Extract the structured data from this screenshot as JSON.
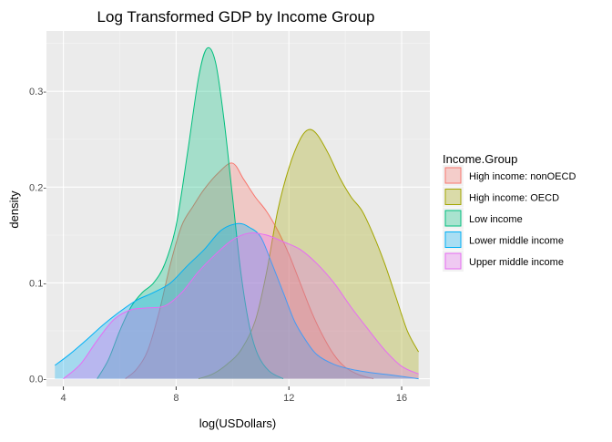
{
  "chart_data": {
    "type": "area",
    "title": "Log Transformed GDP by Income Group",
    "xlabel": "log(USDollars)",
    "ylabel": "density",
    "xlim": [
      3.4,
      17.0
    ],
    "ylim": [
      -0.008,
      0.363
    ],
    "x_ticks": [
      4,
      8,
      12,
      16
    ],
    "x_tick_labels": [
      "4",
      "8",
      "12",
      "16"
    ],
    "y_ticks": [
      0.0,
      0.1,
      0.2,
      0.3
    ],
    "y_tick_labels": [
      "0.0-",
      "0.1-",
      "0.2-",
      "0.3-"
    ],
    "grid": true,
    "legend": {
      "title": "Income.Group",
      "position": "right"
    },
    "series": [
      {
        "name": "High income: nonOECD",
        "color": "#F8766D",
        "points": [
          [
            6.2,
            0.0
          ],
          [
            6.6,
            0.01
          ],
          [
            7.0,
            0.03
          ],
          [
            7.4,
            0.07
          ],
          [
            7.8,
            0.12
          ],
          [
            8.2,
            0.16
          ],
          [
            8.6,
            0.18
          ],
          [
            9.0,
            0.198
          ],
          [
            9.5,
            0.215
          ],
          [
            10.0,
            0.225
          ],
          [
            10.4,
            0.208
          ],
          [
            10.8,
            0.19
          ],
          [
            11.2,
            0.175
          ],
          [
            11.6,
            0.155
          ],
          [
            12.0,
            0.13
          ],
          [
            12.4,
            0.1
          ],
          [
            12.8,
            0.07
          ],
          [
            13.2,
            0.045
          ],
          [
            13.6,
            0.025
          ],
          [
            14.0,
            0.012
          ],
          [
            14.5,
            0.004
          ],
          [
            15.0,
            0.0
          ]
        ]
      },
      {
        "name": "High income: OECD",
        "color": "#A3A500",
        "points": [
          [
            8.8,
            0.0
          ],
          [
            9.3,
            0.005
          ],
          [
            9.8,
            0.015
          ],
          [
            10.3,
            0.03
          ],
          [
            10.8,
            0.06
          ],
          [
            11.2,
            0.11
          ],
          [
            11.6,
            0.175
          ],
          [
            12.0,
            0.22
          ],
          [
            12.4,
            0.25
          ],
          [
            12.7,
            0.26
          ],
          [
            13.0,
            0.255
          ],
          [
            13.4,
            0.235
          ],
          [
            13.8,
            0.21
          ],
          [
            14.2,
            0.19
          ],
          [
            14.6,
            0.175
          ],
          [
            15.0,
            0.15
          ],
          [
            15.4,
            0.12
          ],
          [
            15.8,
            0.085
          ],
          [
            16.2,
            0.05
          ],
          [
            16.6,
            0.028
          ]
        ]
      },
      {
        "name": "Low income",
        "color": "#00BF7D",
        "points": [
          [
            5.2,
            0.0
          ],
          [
            5.6,
            0.02
          ],
          [
            6.0,
            0.05
          ],
          [
            6.4,
            0.075
          ],
          [
            6.8,
            0.09
          ],
          [
            7.2,
            0.1
          ],
          [
            7.6,
            0.12
          ],
          [
            8.0,
            0.16
          ],
          [
            8.4,
            0.235
          ],
          [
            8.8,
            0.315
          ],
          [
            9.1,
            0.345
          ],
          [
            9.4,
            0.33
          ],
          [
            9.7,
            0.27
          ],
          [
            10.0,
            0.19
          ],
          [
            10.3,
            0.11
          ],
          [
            10.6,
            0.055
          ],
          [
            10.9,
            0.025
          ],
          [
            11.3,
            0.008
          ],
          [
            11.8,
            0.0
          ]
        ]
      },
      {
        "name": "Lower middle income",
        "color": "#00B0F6",
        "points": [
          [
            3.7,
            0.014
          ],
          [
            4.2,
            0.025
          ],
          [
            4.8,
            0.04
          ],
          [
            5.4,
            0.056
          ],
          [
            6.0,
            0.07
          ],
          [
            6.6,
            0.082
          ],
          [
            7.2,
            0.09
          ],
          [
            7.8,
            0.1
          ],
          [
            8.4,
            0.118
          ],
          [
            9.0,
            0.135
          ],
          [
            9.6,
            0.155
          ],
          [
            10.2,
            0.162
          ],
          [
            10.6,
            0.158
          ],
          [
            11.0,
            0.148
          ],
          [
            11.4,
            0.12
          ],
          [
            11.8,
            0.09
          ],
          [
            12.2,
            0.06
          ],
          [
            12.6,
            0.04
          ],
          [
            13.0,
            0.025
          ],
          [
            13.6,
            0.015
          ],
          [
            14.2,
            0.01
          ],
          [
            15.0,
            0.006
          ],
          [
            15.6,
            0.004
          ],
          [
            16.6,
            0.0
          ]
        ]
      },
      {
        "name": "Upper middle income",
        "color": "#E76BF3",
        "points": [
          [
            4.0,
            0.0
          ],
          [
            4.6,
            0.015
          ],
          [
            5.2,
            0.04
          ],
          [
            5.8,
            0.062
          ],
          [
            6.4,
            0.072
          ],
          [
            7.0,
            0.074
          ],
          [
            7.6,
            0.076
          ],
          [
            8.2,
            0.09
          ],
          [
            8.8,
            0.112
          ],
          [
            9.4,
            0.13
          ],
          [
            10.0,
            0.145
          ],
          [
            10.6,
            0.152
          ],
          [
            11.2,
            0.15
          ],
          [
            11.8,
            0.143
          ],
          [
            12.4,
            0.135
          ],
          [
            13.0,
            0.12
          ],
          [
            13.6,
            0.1
          ],
          [
            14.2,
            0.075
          ],
          [
            14.8,
            0.052
          ],
          [
            15.4,
            0.03
          ],
          [
            16.0,
            0.013
          ],
          [
            16.6,
            0.005
          ]
        ]
      }
    ]
  }
}
